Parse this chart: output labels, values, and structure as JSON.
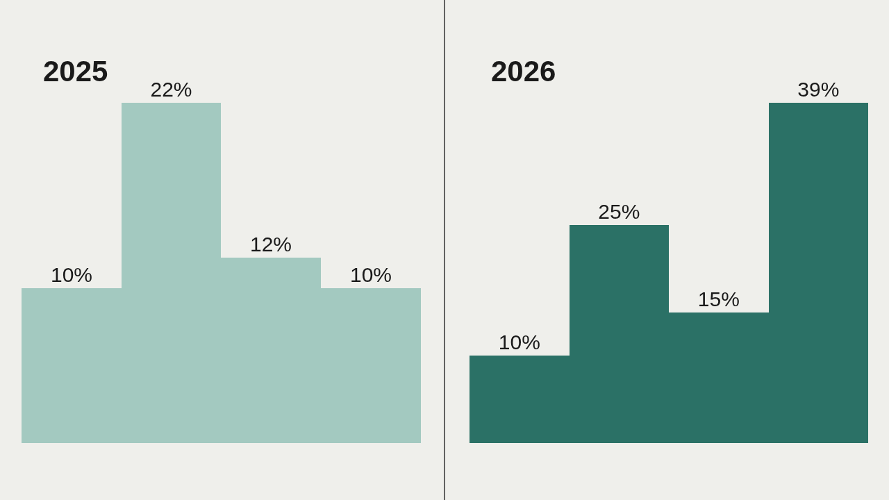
{
  "chart_data": [
    {
      "type": "bar",
      "title": "2025",
      "categories": [
        null,
        null,
        null,
        null
      ],
      "values": [
        10,
        22,
        12,
        10
      ],
      "value_labels": [
        "10%",
        "22%",
        "12%",
        "10%"
      ],
      "color": "#a3c9c0",
      "tick_labels": false
    },
    {
      "type": "bar",
      "title": "2026",
      "categories": [
        null,
        null,
        null,
        null
      ],
      "values": [
        10,
        25,
        15,
        39
      ],
      "value_labels": [
        "10%",
        "25%",
        "15%",
        "39%"
      ],
      "color": "#2b7166",
      "tick_labels": false
    }
  ]
}
